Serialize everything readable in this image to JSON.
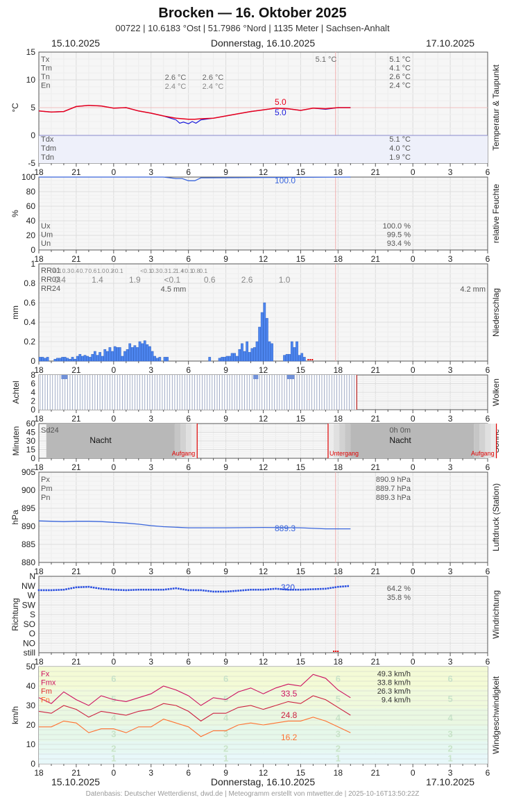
{
  "header": {
    "title": "Brocken  —  16. Oktober 2025",
    "subtitle": "00722  |  10.6183 °Ost  |  51.7986 °Nord  |  1135 Meter  |  Sachsen-Anhalt",
    "date_left": "15.10.2025",
    "date_center": "Donnerstag, 16.10.2025",
    "date_right": "17.10.2025"
  },
  "footer": {
    "date_left": "15.10.2025",
    "date_center": "Donnerstag, 16.10.2025",
    "date_right": "17.10.2025",
    "source": "Datenbasis: Deutscher Wetterdienst, dwd.de | Meteogramm erstellt von mtwetter.de | 2025-10-16T13:50:22Z"
  },
  "x_ticks": [
    "18",
    "21",
    "0",
    "3",
    "6",
    "9",
    "12",
    "15",
    "18",
    "21",
    "0",
    "3",
    "6"
  ],
  "colors": {
    "temp": "#e8001c",
    "dew": "#1a1adc",
    "humidity": "#3a66dc",
    "precip": "#4d86f0",
    "pressure": "#3a66dc",
    "wind_dir": "#2a4fe0",
    "gust": "#cc1060",
    "wind_mean": "#cc2040",
    "wind_min": "#ff7030",
    "night": "#b8b8b8",
    "sun_line": "#e00000"
  },
  "chart_data": [
    {
      "id": "temperature",
      "type": "line",
      "title": "Temperatur & Taupunkt",
      "ylabel": "°C",
      "ylim": [
        -5,
        15
      ],
      "yticks": [
        -5,
        0,
        5,
        10,
        15
      ],
      "stats_top": [
        {
          "label": "Tx",
          "value": "5.1 °C"
        },
        {
          "label": "Tm",
          "value": "4.1 °C"
        },
        {
          "label": "Tn",
          "value": "2.6 °C"
        },
        {
          "label": "En",
          "value": "2.4 °C"
        }
      ],
      "stats_bottom": [
        {
          "label": "Tdx",
          "value": "5.1 °C"
        },
        {
          "label": "Tdm",
          "value": "4.0 °C"
        },
        {
          "label": "Tdn",
          "value": "1.9 °C"
        }
      ],
      "inline_labels": {
        "tx_mid": "5.1 °C",
        "tn_a": "2.6 °C",
        "tn_b": "2.6 °C",
        "en_a": "2.4 °C",
        "en_b": "2.4 °C"
      },
      "end_labels": [
        "5.0",
        "5.0"
      ],
      "series": [
        {
          "name": "Temperatur",
          "x": [
            18,
            19,
            20,
            21,
            22,
            23,
            24,
            25,
            26,
            27,
            28,
            29,
            29.5,
            30,
            30.5,
            31,
            32,
            33,
            34,
            35,
            36,
            37,
            38,
            39,
            40,
            41,
            42,
            43
          ],
          "y": [
            4.4,
            4.2,
            4.3,
            5.2,
            5.4,
            5.3,
            4.9,
            5.0,
            4.4,
            4.0,
            3.5,
            3.1,
            3.0,
            2.9,
            2.9,
            3.0,
            3.1,
            3.5,
            3.9,
            4.3,
            4.6,
            4.9,
            4.8,
            4.5,
            4.9,
            4.8,
            5.0,
            5.0
          ]
        },
        {
          "name": "Taupunkt",
          "x": [
            18,
            19,
            20,
            21,
            22,
            23,
            24,
            25,
            26,
            27,
            28,
            29,
            29.3,
            29.6,
            30,
            30.3,
            30.6,
            31,
            32,
            33,
            34,
            35,
            36,
            37,
            38,
            39,
            40,
            41,
            42,
            43
          ],
          "y": [
            4.4,
            4.2,
            4.3,
            5.2,
            5.4,
            5.3,
            4.9,
            5.0,
            4.4,
            4.0,
            3.5,
            2.8,
            2.2,
            2.4,
            2.1,
            2.5,
            2.2,
            2.8,
            3.1,
            3.5,
            3.9,
            4.3,
            4.6,
            4.9,
            4.8,
            4.5,
            4.9,
            4.7,
            5.0,
            5.0
          ]
        }
      ]
    },
    {
      "id": "humidity",
      "type": "line",
      "title": "relative Feuchte",
      "ylabel": "%",
      "ylim": [
        0,
        100
      ],
      "yticks": [
        0,
        20,
        40,
        60,
        80,
        100
      ],
      "stats": [
        {
          "label": "Ux",
          "value": "100.0 %"
        },
        {
          "label": "Um",
          "value": "99.5 %"
        },
        {
          "label": "Un",
          "value": "93.4 %"
        }
      ],
      "end_label": "100.0",
      "series": [
        {
          "name": "Feuchte",
          "x": [
            18,
            28,
            29,
            29.5,
            30,
            30.5,
            31,
            31.5,
            43
          ],
          "y": [
            100,
            100,
            98,
            98,
            95,
            95,
            99,
            99,
            100
          ]
        }
      ]
    },
    {
      "id": "precipitation",
      "type": "bar",
      "title": "Niederschlag",
      "ylabel": "mm",
      "ylim": [
        0,
        1.0
      ],
      "yticks": [
        0.0,
        0.2,
        0.4,
        0.6,
        0.8,
        1.0
      ],
      "rr01_label": "RR01",
      "rr03_label": "RR03",
      "rr24_label": "RR24",
      "rr01": [
        "0.1",
        "0.3",
        "0.4",
        "0.7",
        "0.6",
        "1.0",
        "0.2",
        "<0.1",
        "<0.1",
        "0.3",
        "0.3",
        "1.2",
        "1.4",
        "<0.1",
        "0.8",
        "0.1"
      ],
      "rr03": [
        "0.4",
        "1.4",
        "1.9",
        "<0.1",
        "0.6",
        "2.6",
        "1.0"
      ],
      "rr24_mid": "4.5 mm",
      "rr24_right": "4.2 mm",
      "x": [
        18.1,
        18.3,
        18.5,
        18.7,
        19.3,
        19.5,
        19.7,
        19.9,
        20.1,
        20.3,
        20.5,
        20.7,
        20.9,
        21.1,
        21.3,
        21.5,
        21.7,
        21.9,
        22.1,
        22.3,
        22.5,
        22.7,
        22.9,
        23.1,
        23.3,
        23.5,
        23.7,
        23.9,
        24.1,
        24.3,
        24.5,
        24.7,
        24.9,
        25.1,
        25.3,
        25.5,
        25.7,
        25.9,
        26.1,
        26.3,
        26.5,
        26.7,
        26.9,
        27.1,
        27.3,
        27.5,
        27.7,
        28.1,
        28.3,
        31.7,
        32.5,
        32.7,
        32.9,
        33.1,
        33.3,
        33.5,
        33.7,
        33.9,
        34.1,
        34.3,
        34.5,
        34.7,
        34.9,
        35.1,
        35.3,
        35.5,
        35.7,
        35.9,
        36.1,
        36.3,
        36.5,
        36.7,
        37.7,
        37.9,
        38.1,
        38.3,
        38.5,
        38.7,
        38.9,
        39.1,
        39.3
      ],
      "values": [
        0.04,
        0.04,
        0.03,
        0.04,
        0.02,
        0.03,
        0.03,
        0.04,
        0.04,
        0.03,
        0.02,
        0.04,
        0.02,
        0.05,
        0.07,
        0.05,
        0.06,
        0.05,
        0.04,
        0.07,
        0.1,
        0.06,
        0.09,
        0.05,
        0.12,
        0.1,
        0.14,
        0.1,
        0.15,
        0.14,
        0.14,
        0.05,
        0.1,
        0.12,
        0.18,
        0.14,
        0.16,
        0.14,
        0.2,
        0.18,
        0.21,
        0.17,
        0.15,
        0.1,
        0.05,
        0.03,
        0.04,
        0.04,
        0.04,
        0.04,
        0.03,
        0.04,
        0.04,
        0.05,
        0.05,
        0.08,
        0.08,
        0.05,
        0.12,
        0.18,
        0.1,
        0.2,
        0.09,
        0.13,
        0.14,
        0.2,
        0.35,
        0.5,
        0.6,
        0.44,
        0.2,
        0.18,
        0.06,
        0.07,
        0.07,
        0.2,
        0.14,
        0.2,
        0.06,
        0.08,
        0.04
      ]
    },
    {
      "id": "clouds",
      "type": "bar",
      "title": "Wolken",
      "ylabel": "Achtel",
      "ylim": [
        0,
        8
      ],
      "yticks": [
        0,
        2,
        4,
        6,
        8
      ],
      "hourly_value": 8,
      "x_end": 43.5
    },
    {
      "id": "sun",
      "type": "area",
      "title": "Sonne",
      "ylabel": "Minuten",
      "ylim": [
        0,
        60
      ],
      "yticks": [
        0,
        15,
        30,
        45,
        60
      ],
      "stat_left": "Sd24",
      "stat_right": "0h 0m",
      "night_label": "Nacht",
      "sunrise_label": "Aufgang",
      "sunset_label": "Untergang",
      "sunrise": [
        30.7,
        54.7
      ],
      "sunset": [
        41.2
      ]
    },
    {
      "id": "pressure",
      "type": "line",
      "title": "Luftdruck (Station)",
      "ylabel": "hPa",
      "ylim": [
        880,
        905
      ],
      "yticks": [
        880,
        885,
        890,
        895,
        900,
        905
      ],
      "stats": [
        {
          "label": "Px",
          "value": "890.9 hPa"
        },
        {
          "label": "Pm",
          "value": "889.7 hPa"
        },
        {
          "label": "Pn",
          "value": "889.3 hPa"
        }
      ],
      "end_label": "889.3",
      "series": [
        {
          "name": "Luftdruck",
          "x": [
            18,
            19,
            20,
            21,
            22,
            23,
            24,
            25,
            26,
            27,
            28,
            30,
            33,
            36,
            39,
            41,
            43
          ],
          "y": [
            891.5,
            891.4,
            891.3,
            891.4,
            891.4,
            891.3,
            891.1,
            890.9,
            890.6,
            890.2,
            889.9,
            889.6,
            889.6,
            889.7,
            889.6,
            889.3,
            889.3
          ]
        }
      ]
    },
    {
      "id": "wind_direction",
      "type": "scatter",
      "title": "Windrichtung",
      "ylabel": "Richtung",
      "ylim": [
        0,
        8
      ],
      "yticks": [
        "still",
        "NO",
        "O",
        "SO",
        "S",
        "SW",
        "W",
        "NW",
        "N"
      ],
      "stats": [
        {
          "value": "64.2 %"
        },
        {
          "value": "35.8 %"
        }
      ],
      "end_label": "320",
      "series": [
        {
          "name": "Richtung",
          "x": [
            18,
            19,
            20,
            21,
            22,
            23,
            24,
            25,
            26,
            27,
            28,
            29,
            30,
            31,
            32,
            33,
            34,
            35,
            36,
            37,
            38,
            39,
            40,
            41,
            42,
            43
          ],
          "y": [
            6.55,
            6.55,
            6.6,
            6.85,
            6.9,
            6.7,
            6.6,
            6.55,
            6.6,
            6.6,
            6.6,
            6.75,
            6.55,
            6.55,
            6.4,
            6.4,
            6.5,
            6.6,
            6.6,
            6.7,
            6.6,
            6.6,
            6.65,
            6.7,
            6.9,
            7.0
          ]
        }
      ]
    },
    {
      "id": "wind_speed",
      "type": "line",
      "title": "Windgeschwindigkeit",
      "ylabel": "km/h",
      "ylim": [
        0,
        50
      ],
      "yticks": [
        0,
        10,
        20,
        30,
        40,
        50
      ],
      "stats_labels": [
        "Fx",
        "Fmx",
        "Fm",
        "Fn"
      ],
      "stats_values": [
        "49.3 km/h",
        "33.8 km/h",
        "26.3 km/h",
        "9.4 km/h"
      ],
      "bft_labels": [
        "1",
        "2",
        "3",
        "4",
        "5",
        "6"
      ],
      "end_labels": [
        "33.5",
        "24.8",
        "16.2"
      ],
      "series": [
        {
          "name": "Fx",
          "x": [
            18,
            19,
            20,
            21,
            22,
            23,
            24,
            25,
            26,
            27,
            28,
            29,
            30,
            31,
            32,
            33,
            34,
            35,
            36,
            37,
            38,
            39,
            40,
            41,
            42,
            43
          ],
          "y": [
            34,
            31,
            37,
            33,
            30,
            35,
            33,
            32,
            34,
            36,
            40,
            38,
            35,
            30,
            34,
            33,
            37,
            39,
            36,
            39,
            41,
            40,
            46,
            44,
            38,
            34
          ]
        },
        {
          "name": "Fm",
          "x": [
            18,
            19,
            20,
            21,
            22,
            23,
            24,
            25,
            26,
            27,
            28,
            29,
            30,
            31,
            32,
            33,
            34,
            35,
            36,
            37,
            38,
            39,
            40,
            41,
            42,
            43
          ],
          "y": [
            27,
            26,
            30,
            28,
            24,
            27,
            26,
            25,
            27,
            28,
            31,
            30,
            27,
            22,
            26,
            26,
            29,
            30,
            28,
            30,
            32,
            31,
            35,
            33,
            29,
            25
          ]
        },
        {
          "name": "Fn",
          "x": [
            18,
            19,
            20,
            21,
            22,
            23,
            24,
            25,
            26,
            27,
            28,
            29,
            30,
            31,
            32,
            33,
            34,
            35,
            36,
            37,
            38,
            39,
            40,
            41,
            42,
            43
          ],
          "y": [
            19,
            19,
            22,
            21,
            16,
            18,
            18,
            16,
            19,
            19,
            23,
            21,
            19,
            14,
            17,
            17,
            20,
            21,
            20,
            21,
            22,
            22,
            24,
            22,
            19,
            16
          ]
        }
      ]
    }
  ]
}
